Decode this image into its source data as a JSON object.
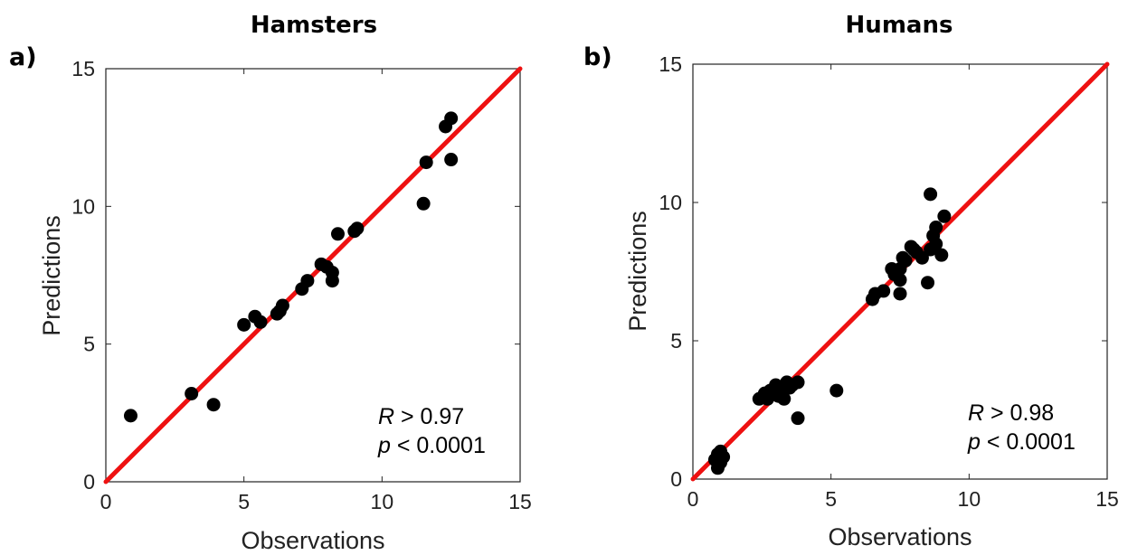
{
  "chart_data": [
    {
      "type": "scatter",
      "panel_label": "a)",
      "title": "Hamsters",
      "xlabel": "Observations",
      "ylabel": "Predictions",
      "xlim": [
        0,
        15
      ],
      "ylim": [
        0,
        15
      ],
      "xticks": [
        "0",
        "5",
        "10",
        "15"
      ],
      "yticks": [
        "0",
        "5",
        "10",
        "15"
      ],
      "grid": false,
      "annotation": {
        "r_symbol": "R",
        "r_text": " > 0.97",
        "p_symbol": "p",
        "p_text": " < 0.0001"
      },
      "line": {
        "x": [
          0,
          15
        ],
        "y": [
          0,
          15
        ],
        "color": "#ee1111"
      },
      "point_color": "#000000",
      "points": [
        [
          0.9,
          2.4
        ],
        [
          3.1,
          3.2
        ],
        [
          3.9,
          2.8
        ],
        [
          5.0,
          5.7
        ],
        [
          5.4,
          6.0
        ],
        [
          5.6,
          5.8
        ],
        [
          6.2,
          6.1
        ],
        [
          6.3,
          6.2
        ],
        [
          6.4,
          6.4
        ],
        [
          7.1,
          7.0
        ],
        [
          7.3,
          7.3
        ],
        [
          7.8,
          7.9
        ],
        [
          8.0,
          7.8
        ],
        [
          8.2,
          7.6
        ],
        [
          8.2,
          7.3
        ],
        [
          8.4,
          9.0
        ],
        [
          9.0,
          9.1
        ],
        [
          9.1,
          9.2
        ],
        [
          11.5,
          10.1
        ],
        [
          11.6,
          11.6
        ],
        [
          12.3,
          12.9
        ],
        [
          12.5,
          13.2
        ],
        [
          12.5,
          11.7
        ]
      ]
    },
    {
      "type": "scatter",
      "panel_label": "b)",
      "title": "Humans",
      "xlabel": "Observations",
      "ylabel": "Predictions",
      "xlim": [
        0,
        15
      ],
      "ylim": [
        0,
        15
      ],
      "xticks": [
        "0",
        "5",
        "10",
        "15"
      ],
      "yticks": [
        "0",
        "5",
        "10",
        "15"
      ],
      "grid": false,
      "annotation": {
        "r_symbol": "R",
        "r_text": " > 0.98",
        "p_symbol": "p",
        "p_text": " < 0.0001"
      },
      "line": {
        "x": [
          0,
          15
        ],
        "y": [
          0,
          15
        ],
        "color": "#ee1111"
      },
      "point_color": "#000000",
      "points": [
        [
          0.8,
          0.7
        ],
        [
          0.9,
          0.4
        ],
        [
          0.9,
          0.9
        ],
        [
          1.0,
          1.0
        ],
        [
          1.1,
          0.8
        ],
        [
          1.0,
          0.6
        ],
        [
          2.4,
          2.9
        ],
        [
          2.6,
          3.1
        ],
        [
          2.7,
          2.9
        ],
        [
          2.8,
          3.2
        ],
        [
          3.0,
          3.4
        ],
        [
          3.1,
          3.0
        ],
        [
          3.2,
          3.2
        ],
        [
          3.3,
          2.9
        ],
        [
          3.4,
          3.5
        ],
        [
          3.5,
          3.3
        ],
        [
          3.6,
          3.4
        ],
        [
          3.8,
          3.5
        ],
        [
          3.8,
          2.2
        ],
        [
          5.2,
          3.2
        ],
        [
          6.5,
          6.5
        ],
        [
          6.6,
          6.7
        ],
        [
          6.9,
          6.8
        ],
        [
          7.2,
          7.6
        ],
        [
          7.3,
          7.4
        ],
        [
          7.5,
          7.6
        ],
        [
          7.5,
          7.2
        ],
        [
          7.5,
          6.7
        ],
        [
          7.6,
          8.0
        ],
        [
          7.7,
          7.9
        ],
        [
          7.9,
          8.4
        ],
        [
          8.0,
          8.3
        ],
        [
          8.1,
          8.2
        ],
        [
          8.3,
          8.0
        ],
        [
          8.5,
          7.1
        ],
        [
          8.6,
          8.3
        ],
        [
          8.6,
          10.3
        ],
        [
          8.7,
          8.8
        ],
        [
          8.8,
          9.1
        ],
        [
          8.8,
          8.5
        ],
        [
          9.0,
          8.1
        ],
        [
          9.1,
          9.5
        ]
      ]
    }
  ]
}
